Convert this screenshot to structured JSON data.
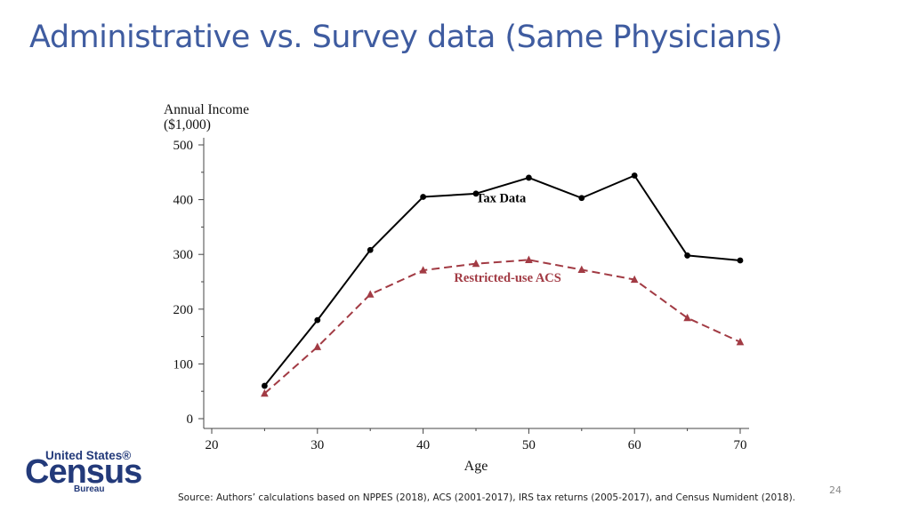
{
  "slide": {
    "title": "Administrative vs. Survey data (Same Physicians)",
    "source": "Source: Authors’ calculations based on NPPES (2018), ACS (2001-2017), IRS tax returns (2005-2017), and Census Numident (2018).",
    "page_number": "24"
  },
  "logo": {
    "top": "United States®",
    "main": "Census",
    "sub": "Bureau"
  },
  "chart_data": {
    "type": "line",
    "title": "",
    "ylabel_line1": "Annual Income",
    "ylabel_line2": "($1,000)",
    "xlabel": "Age",
    "xlim": [
      20,
      70
    ],
    "ylim": [
      0,
      500
    ],
    "xticks": [
      20,
      30,
      40,
      50,
      60,
      70
    ],
    "yticks": [
      0,
      100,
      200,
      300,
      400,
      500
    ],
    "x": [
      25,
      30,
      35,
      40,
      45,
      50,
      55,
      60,
      65,
      70
    ],
    "series": [
      {
        "name": "Tax Data",
        "label": "Tax Data",
        "values": [
          60,
          180,
          308,
          405,
          411,
          440,
          403,
          444,
          298,
          289
        ],
        "color": "#000000",
        "marker": "circle",
        "dashed": false,
        "label_at": [
          45,
          395
        ]
      },
      {
        "name": "Restricted-use ACS",
        "label": "Restricted-use ACS",
        "values": [
          46,
          131,
          227,
          271,
          283,
          290,
          272,
          254,
          184,
          140
        ],
        "color": "#a23b44",
        "marker": "triangle",
        "dashed": true,
        "label_at": [
          48,
          250
        ]
      }
    ],
    "colors": {
      "axis": "#444444",
      "text": "#111111"
    }
  }
}
